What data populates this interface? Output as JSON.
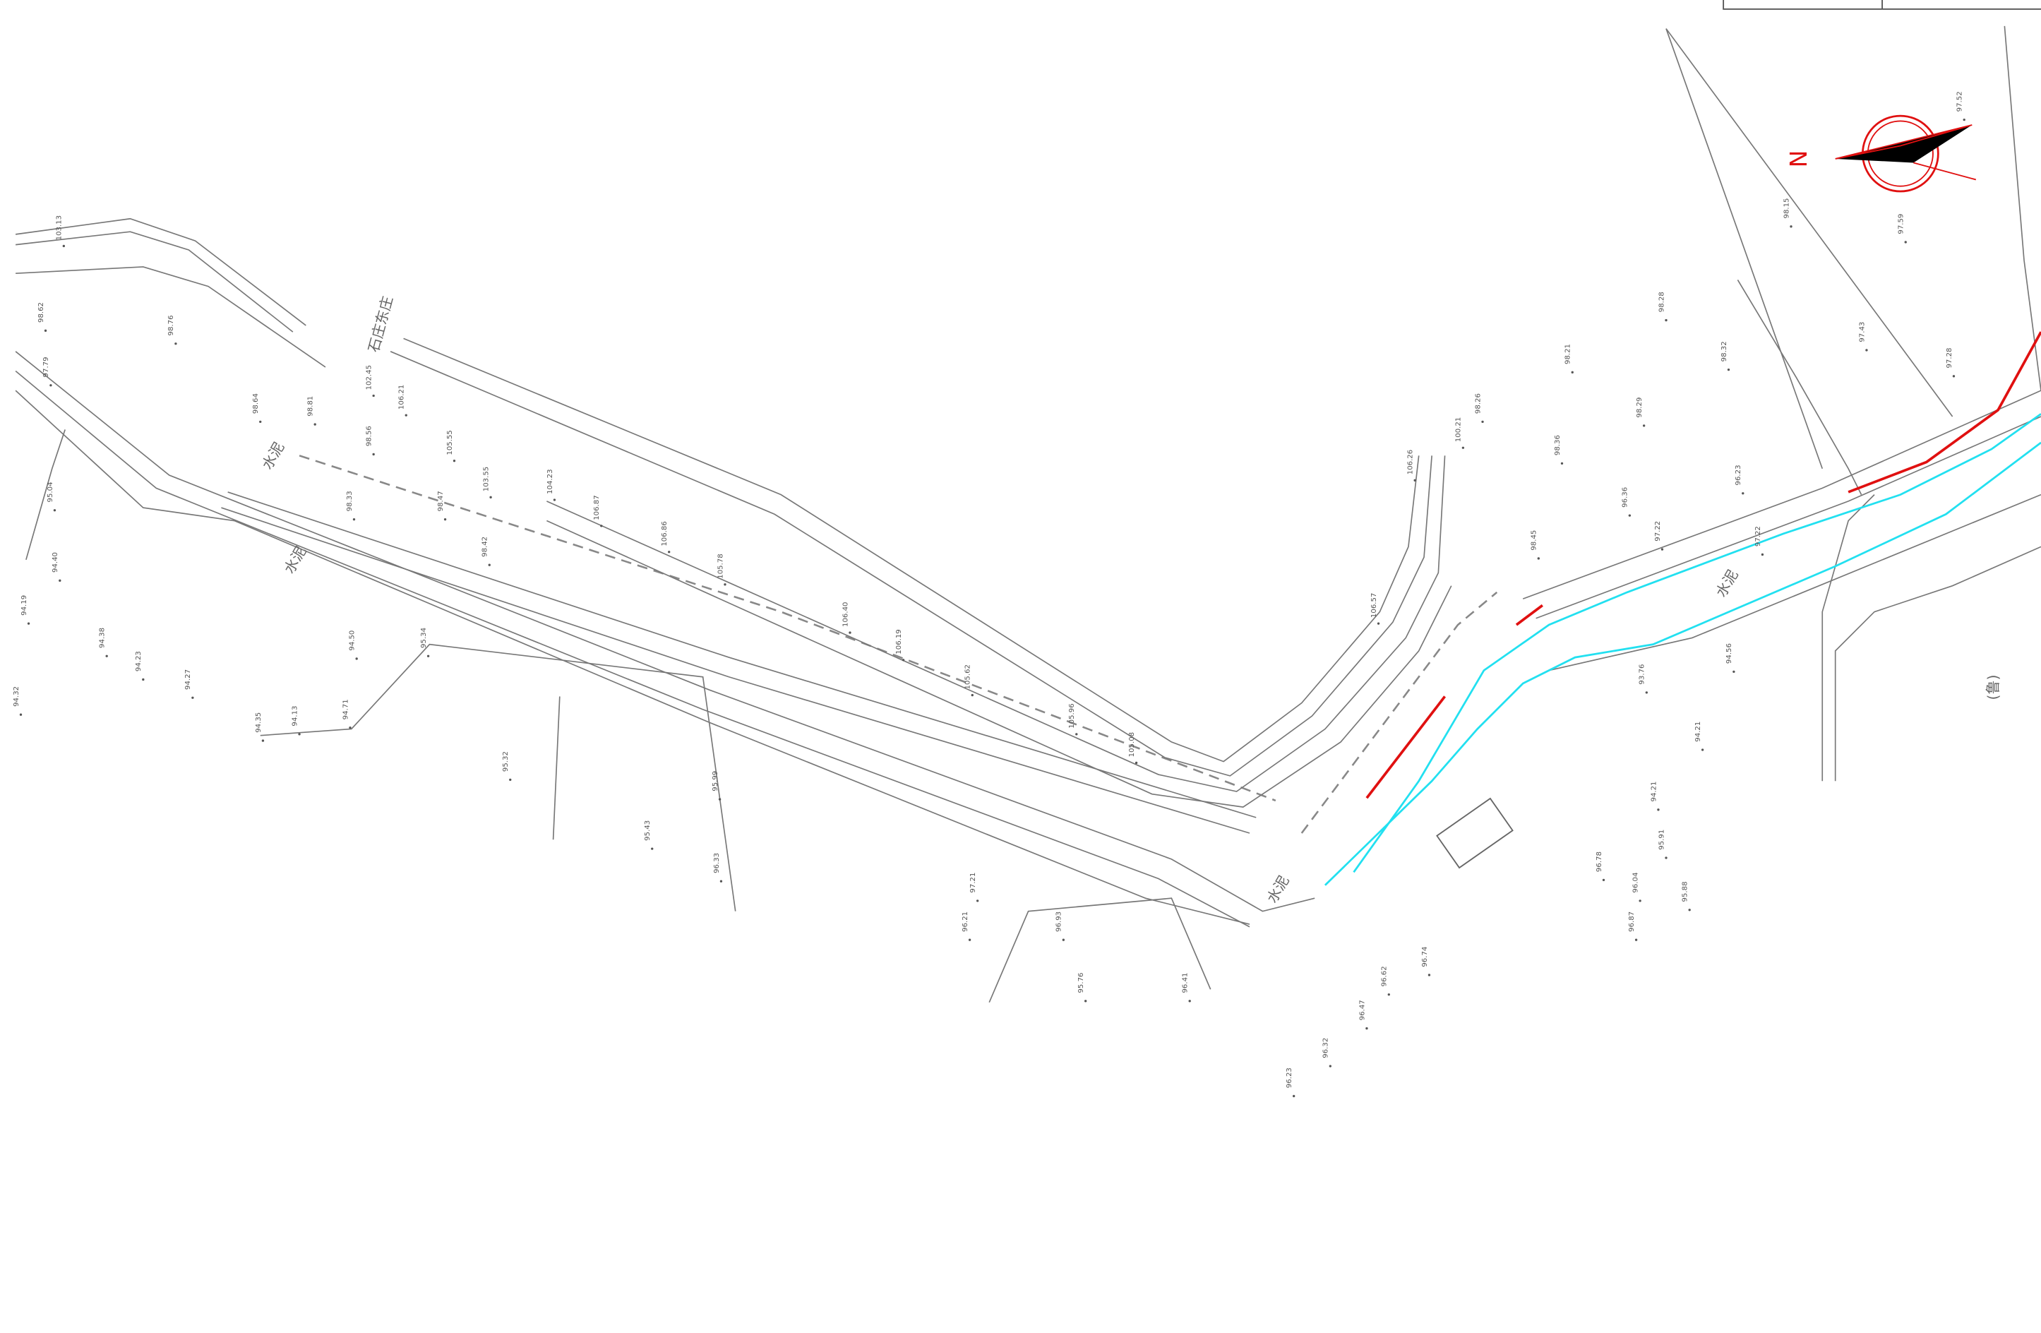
{
  "map": {
    "north": "N",
    "labels": [
      "石庄东庄",
      "水泥",
      "水泥",
      "水泥",
      "水泥",
      "(鲁)"
    ],
    "elevations": [
      "103.13",
      "98.62",
      "97.79",
      "95.04",
      "94.40",
      "94.19",
      "94.32",
      "94.38",
      "94.23",
      "94.27",
      "98.76",
      "98.64",
      "98.81",
      "98.56",
      "98.33",
      "98.47",
      "98.42",
      "103.55",
      "105.55",
      "106.21",
      "102.45",
      "104.23",
      "106.87",
      "106.86",
      "105.78",
      "106.40",
      "106.19",
      "105.62",
      "105.96",
      "105.08",
      "106.57",
      "106.26",
      "100.21",
      "98.26",
      "98.45",
      "98.21",
      "98.36",
      "98.29",
      "98.28",
      "98.32",
      "98.15",
      "97.43",
      "97.59",
      "97.52",
      "97.28",
      "96.36",
      "96.23",
      "97.22",
      "97.22",
      "94.56",
      "94.21",
      "94.21",
      "95.91",
      "95.88",
      "96.04",
      "96.87",
      "96.78",
      "93.76",
      "96.23",
      "96.32",
      "96.47",
      "96.62",
      "96.74",
      "94.50",
      "95.34",
      "95.32",
      "95.43",
      "95.99",
      "96.33",
      "96.21",
      "97.21",
      "96.93",
      "95.76",
      "96.41",
      "94.71",
      "94.13",
      "94.35"
    ]
  }
}
